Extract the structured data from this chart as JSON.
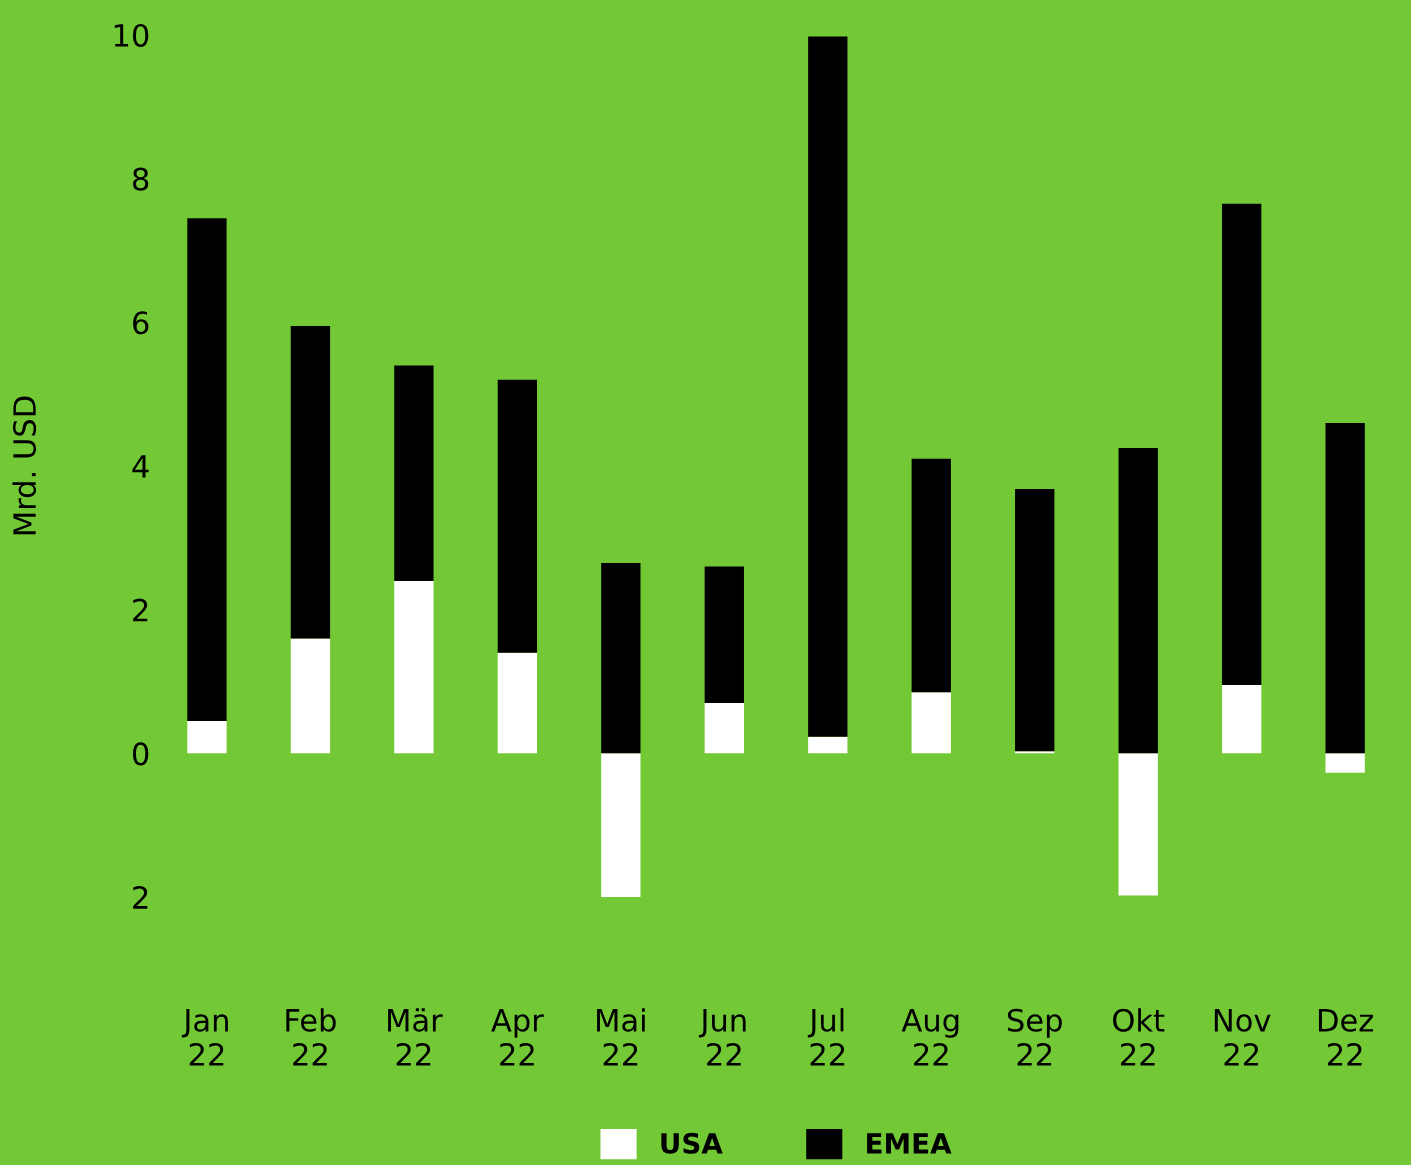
{
  "chart_data": {
    "type": "bar",
    "stacked": true,
    "ylabel": "Mrd. USD",
    "categories": [
      "Jan\n22",
      "Feb\n22",
      "Mär\n22",
      "Apr\n22",
      "Mai\n22",
      "Jun\n22",
      "Jul\n22",
      "Aug\n22",
      "Sep\n22",
      "Okt\n22",
      "Nov\n22",
      "Dez\n22"
    ],
    "series": [
      {
        "name": "USA",
        "color": "#ffffff",
        "values": [
          0.45,
          1.6,
          2.4,
          1.4,
          -2.0,
          0.7,
          0.23,
          0.85,
          0.03,
          -1.98,
          0.95,
          -0.27
        ]
      },
      {
        "name": "EMEA",
        "color": "#000000",
        "values": [
          7.0,
          4.35,
          3.0,
          3.8,
          2.65,
          1.9,
          9.75,
          3.25,
          3.65,
          4.25,
          6.7,
          4.6
        ]
      }
    ],
    "ylim": [
      -2,
      10
    ],
    "yticks": [
      {
        "value": -2,
        "label": "2"
      },
      0,
      2,
      4,
      6,
      8,
      10
    ],
    "grid": false,
    "legend": "bottom"
  }
}
